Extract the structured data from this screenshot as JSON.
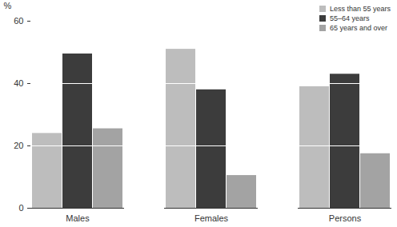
{
  "chart_data": {
    "type": "bar",
    "categories": [
      "Males",
      "Females",
      "Persons"
    ],
    "series": [
      {
        "name": "Less than 55 years",
        "color": "#bdbdbd",
        "values": [
          24,
          51,
          39
        ]
      },
      {
        "name": "55–64 years",
        "color": "#3c3c3c",
        "values": [
          49.5,
          38,
          43
        ]
      },
      {
        "name": "65 years and over",
        "color": "#a3a3a3",
        "values": [
          25.5,
          10.5,
          17.5
        ]
      }
    ],
    "y_label": "%",
    "ylim": [
      0,
      60
    ],
    "yticks": [
      0,
      20,
      40,
      60
    ],
    "grid": true,
    "legend": "top-right"
  }
}
